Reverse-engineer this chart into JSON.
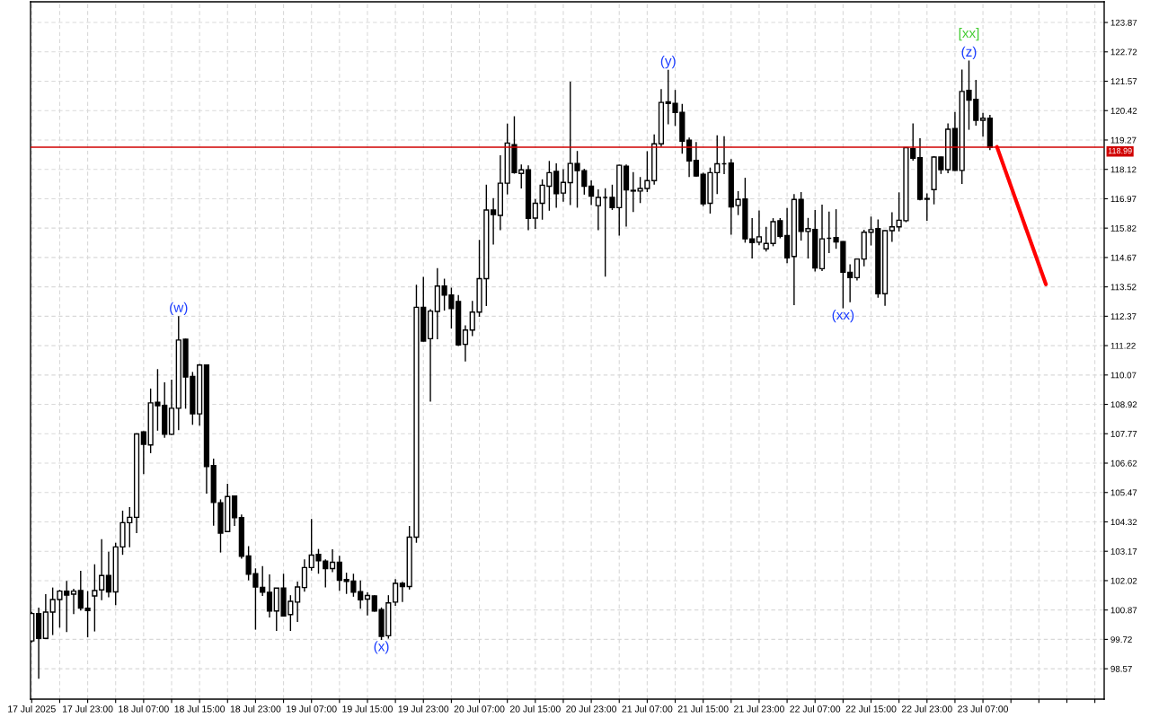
{
  "chart_data": {
    "type": "candlestick",
    "x": [
      "2025-07-17T15:00",
      "2025-07-17T16:00",
      "2025-07-17T17:00",
      "2025-07-17T18:00",
      "2025-07-17T19:00",
      "2025-07-17T20:00",
      "2025-07-17T21:00",
      "2025-07-17T22:00",
      "2025-07-17T23:00",
      "2025-07-18T00:00",
      "2025-07-18T01:00",
      "2025-07-18T02:00",
      "2025-07-18T03:00",
      "2025-07-18T04:00",
      "2025-07-18T05:00",
      "2025-07-18T06:00",
      "2025-07-18T07:00",
      "2025-07-18T08:00",
      "2025-07-18T09:00",
      "2025-07-18T10:00",
      "2025-07-18T11:00",
      "2025-07-18T12:00",
      "2025-07-18T13:00",
      "2025-07-18T14:00",
      "2025-07-18T15:00",
      "2025-07-18T16:00",
      "2025-07-18T17:00",
      "2025-07-18T18:00",
      "2025-07-18T19:00",
      "2025-07-18T20:00",
      "2025-07-18T21:00",
      "2025-07-18T22:00",
      "2025-07-18T23:00",
      "2025-07-19T00:00",
      "2025-07-19T01:00",
      "2025-07-19T02:00",
      "2025-07-19T03:00",
      "2025-07-19T04:00",
      "2025-07-19T05:00",
      "2025-07-19T06:00",
      "2025-07-19T07:00",
      "2025-07-19T08:00",
      "2025-07-19T09:00",
      "2025-07-19T10:00",
      "2025-07-19T11:00",
      "2025-07-19T12:00",
      "2025-07-19T13:00",
      "2025-07-19T14:00",
      "2025-07-19T15:00",
      "2025-07-19T16:00",
      "2025-07-19T17:00",
      "2025-07-19T18:00",
      "2025-07-19T19:00",
      "2025-07-19T20:00",
      "2025-07-19T21:00",
      "2025-07-19T22:00",
      "2025-07-19T23:00",
      "2025-07-20T00:00",
      "2025-07-20T01:00",
      "2025-07-20T02:00",
      "2025-07-20T03:00",
      "2025-07-20T04:00",
      "2025-07-20T05:00",
      "2025-07-20T06:00",
      "2025-07-20T07:00",
      "2025-07-20T08:00",
      "2025-07-20T09:00",
      "2025-07-20T10:00",
      "2025-07-20T11:00",
      "2025-07-20T12:00",
      "2025-07-20T13:00",
      "2025-07-20T14:00",
      "2025-07-20T15:00",
      "2025-07-20T16:00",
      "2025-07-20T17:00",
      "2025-07-20T18:00",
      "2025-07-20T19:00",
      "2025-07-20T20:00",
      "2025-07-20T21:00",
      "2025-07-20T22:00",
      "2025-07-20T23:00",
      "2025-07-21T00:00",
      "2025-07-21T01:00",
      "2025-07-21T02:00",
      "2025-07-21T03:00",
      "2025-07-21T04:00",
      "2025-07-21T05:00",
      "2025-07-21T06:00",
      "2025-07-21T07:00",
      "2025-07-21T08:00",
      "2025-07-21T09:00",
      "2025-07-21T10:00",
      "2025-07-21T11:00",
      "2025-07-21T12:00",
      "2025-07-21T13:00",
      "2025-07-21T14:00",
      "2025-07-21T15:00",
      "2025-07-21T16:00",
      "2025-07-21T17:00",
      "2025-07-21T18:00",
      "2025-07-21T19:00",
      "2025-07-21T20:00",
      "2025-07-21T21:00",
      "2025-07-21T22:00",
      "2025-07-21T23:00",
      "2025-07-22T00:00",
      "2025-07-22T01:00",
      "2025-07-22T02:00",
      "2025-07-22T03:00",
      "2025-07-22T04:00",
      "2025-07-22T05:00",
      "2025-07-22T06:00",
      "2025-07-22T07:00",
      "2025-07-22T08:00",
      "2025-07-22T09:00",
      "2025-07-22T10:00",
      "2025-07-22T11:00",
      "2025-07-22T12:00",
      "2025-07-22T13:00",
      "2025-07-22T14:00",
      "2025-07-22T15:00",
      "2025-07-22T16:00",
      "2025-07-22T17:00",
      "2025-07-22T18:00",
      "2025-07-22T19:00",
      "2025-07-22T20:00",
      "2025-07-22T21:00",
      "2025-07-22T22:00",
      "2025-07-22T23:00",
      "2025-07-23T00:00",
      "2025-07-23T01:00",
      "2025-07-23T02:00",
      "2025-07-23T03:00",
      "2025-07-23T04:00",
      "2025-07-23T05:00",
      "2025-07-23T06:00",
      "2025-07-23T07:00",
      "2025-07-23T08:00"
    ],
    "ohlc": [
      [
        99.66,
        100.8,
        99.6,
        100.73
      ],
      [
        100.73,
        100.96,
        98.18,
        99.76
      ],
      [
        99.76,
        101.49,
        99.74,
        100.79
      ],
      [
        100.79,
        101.75,
        99.89,
        101.28
      ],
      [
        101.28,
        101.66,
        100.18,
        101.61
      ],
      [
        101.61,
        102.01,
        100.01,
        101.45
      ],
      [
        101.49,
        101.7,
        100.71,
        101.61
      ],
      [
        101.63,
        102.4,
        100.85,
        100.94
      ],
      [
        100.94,
        101.61,
        99.8,
        100.85
      ],
      [
        101.42,
        102.66,
        100.03,
        101.63
      ],
      [
        101.66,
        103.64,
        101.25,
        102.22
      ],
      [
        102.22,
        103.15,
        101.37,
        101.58
      ],
      [
        101.58,
        103.5,
        101.06,
        103.34
      ],
      [
        103.34,
        104.76,
        103.03,
        104.29
      ],
      [
        104.29,
        104.9,
        103.33,
        104.5
      ],
      [
        104.5,
        107.79,
        103.88,
        107.76
      ],
      [
        107.84,
        107.87,
        106.19,
        107.36
      ],
      [
        107.33,
        109.54,
        107.01,
        108.98
      ],
      [
        109.0,
        110.3,
        107.89,
        108.87
      ],
      [
        108.88,
        109.78,
        107.61,
        107.75
      ],
      [
        107.75,
        109.89,
        107.72,
        108.77
      ],
      [
        108.77,
        112.37,
        107.91,
        111.44
      ],
      [
        111.47,
        111.49,
        108.75,
        109.99
      ],
      [
        110.01,
        110.19,
        108.12,
        108.55
      ],
      [
        108.55,
        110.5,
        108.09,
        110.46
      ],
      [
        110.46,
        110.48,
        105.43,
        106.49
      ],
      [
        106.53,
        106.8,
        104.17,
        105.08
      ],
      [
        105.07,
        105.2,
        103.12,
        103.88
      ],
      [
        103.94,
        105.81,
        103.92,
        105.31
      ],
      [
        105.33,
        105.36,
        104.16,
        104.48
      ],
      [
        104.49,
        104.61,
        102.88,
        102.97
      ],
      [
        102.99,
        103.37,
        102.03,
        102.27
      ],
      [
        102.29,
        102.5,
        100.1,
        101.77
      ],
      [
        101.76,
        102.59,
        101.42,
        101.57
      ],
      [
        101.56,
        102.26,
        100.58,
        100.83
      ],
      [
        100.83,
        101.74,
        100.05,
        101.73
      ],
      [
        101.73,
        102.29,
        100.61,
        100.64
      ],
      [
        100.69,
        101.45,
        100.05,
        101.21
      ],
      [
        101.18,
        101.98,
        100.4,
        101.77
      ],
      [
        101.75,
        102.85,
        101.59,
        102.53
      ],
      [
        102.53,
        104.43,
        102.41,
        103.02
      ],
      [
        103.05,
        103.26,
        102.29,
        102.8
      ],
      [
        102.78,
        102.85,
        101.75,
        102.49
      ],
      [
        102.49,
        103.25,
        102.35,
        102.74
      ],
      [
        102.74,
        102.99,
        101.62,
        102.03
      ],
      [
        102.06,
        102.33,
        101.5,
        101.99
      ],
      [
        102.0,
        102.29,
        101.39,
        101.57
      ],
      [
        101.59,
        102.03,
        100.92,
        101.27
      ],
      [
        101.3,
        101.56,
        100.66,
        101.44
      ],
      [
        101.42,
        101.45,
        100.81,
        100.83
      ],
      [
        100.89,
        100.97,
        99.7,
        99.84
      ],
      [
        99.86,
        101.45,
        99.75,
        101.15
      ],
      [
        101.18,
        102.08,
        101.03,
        101.91
      ],
      [
        101.91,
        101.97,
        101.18,
        101.79
      ],
      [
        101.79,
        104.16,
        101.67,
        103.72
      ],
      [
        103.72,
        113.6,
        103.5,
        112.72
      ],
      [
        112.72,
        113.91,
        111.38,
        111.4
      ],
      [
        111.49,
        112.65,
        109.03,
        112.57
      ],
      [
        112.56,
        114.25,
        111.47,
        113.55
      ],
      [
        113.55,
        113.84,
        112.59,
        113.2
      ],
      [
        113.2,
        113.49,
        111.89,
        112.67
      ],
      [
        112.95,
        113.2,
        111.21,
        111.25
      ],
      [
        111.27,
        112.01,
        110.6,
        111.83
      ],
      [
        111.83,
        112.97,
        111.59,
        112.53
      ],
      [
        112.53,
        115.36,
        112.35,
        113.84
      ],
      [
        113.84,
        117.52,
        112.77,
        116.53
      ],
      [
        116.53,
        116.99,
        115.18,
        116.35
      ],
      [
        116.32,
        118.67,
        115.74,
        117.58
      ],
      [
        117.58,
        119.91,
        117.14,
        119.15
      ],
      [
        119.09,
        120.2,
        117.95,
        117.99
      ],
      [
        117.96,
        118.31,
        117.37,
        118.1
      ],
      [
        118.1,
        118.28,
        115.74,
        116.2
      ],
      [
        116.21,
        116.96,
        115.79,
        116.79
      ],
      [
        116.79,
        117.73,
        116.15,
        117.5
      ],
      [
        117.46,
        118.45,
        116.5,
        117.99
      ],
      [
        118.04,
        118.36,
        116.62,
        117.17
      ],
      [
        117.19,
        118.13,
        116.85,
        117.61
      ],
      [
        117.6,
        121.55,
        116.72,
        118.35
      ],
      [
        118.35,
        118.84,
        116.62,
        118.07
      ],
      [
        118.07,
        118.14,
        117.13,
        117.46
      ],
      [
        117.46,
        117.69,
        116.72,
        117.07
      ],
      [
        116.7,
        117.34,
        115.74,
        117.02
      ],
      [
        117.02,
        117.38,
        113.92,
        117.02
      ],
      [
        117.02,
        117.52,
        116.53,
        116.62
      ],
      [
        116.62,
        118.3,
        115.53,
        118.28
      ],
      [
        118.24,
        118.31,
        115.88,
        117.32
      ],
      [
        117.3,
        118.01,
        116.45,
        117.27
      ],
      [
        117.27,
        117.82,
        116.8,
        117.37
      ],
      [
        117.37,
        118.83,
        117.23,
        117.68
      ],
      [
        117.68,
        119.49,
        117.52,
        119.12
      ],
      [
        119.12,
        121.26,
        119.01,
        120.74
      ],
      [
        120.76,
        122.02,
        119.88,
        120.7
      ],
      [
        120.7,
        121.23,
        119.82,
        120.35
      ],
      [
        120.35,
        120.68,
        118.73,
        119.22
      ],
      [
        119.26,
        119.37,
        117.82,
        118.45
      ],
      [
        118.47,
        119.19,
        117.84,
        117.86
      ],
      [
        117.93,
        117.99,
        116.68,
        116.77
      ],
      [
        116.79,
        118.19,
        116.39,
        117.99
      ],
      [
        117.99,
        119.45,
        117.15,
        118.34
      ],
      [
        118.34,
        119.42,
        117.93,
        118.34
      ],
      [
        118.37,
        118.52,
        115.56,
        116.65
      ],
      [
        116.71,
        117.27,
        116.33,
        116.94
      ],
      [
        116.96,
        117.79,
        115.25,
        115.4
      ],
      [
        115.4,
        116.21,
        114.63,
        115.25
      ],
      [
        115.27,
        116.51,
        115.15,
        115.48
      ],
      [
        115.01,
        115.87,
        114.9,
        115.22
      ],
      [
        115.22,
        116.21,
        115.11,
        116.07
      ],
      [
        116.11,
        116.21,
        115.42,
        115.5
      ],
      [
        115.53,
        116.61,
        114.45,
        114.66
      ],
      [
        114.71,
        117.15,
        112.8,
        116.94
      ],
      [
        116.94,
        117.23,
        115.33,
        115.69
      ],
      [
        115.69,
        116.22,
        114.63,
        115.8
      ],
      [
        115.77,
        116.53,
        114.12,
        114.26
      ],
      [
        114.23,
        116.74,
        114.14,
        115.4
      ],
      [
        115.42,
        116.47,
        114.84,
        115.42
      ],
      [
        115.45,
        116.56,
        115.01,
        115.28
      ],
      [
        115.29,
        115.31,
        112.68,
        114.09
      ],
      [
        114.09,
        114.4,
        112.92,
        113.88
      ],
      [
        113.88,
        114.63,
        113.77,
        114.61
      ],
      [
        114.61,
        115.76,
        114.32,
        115.66
      ],
      [
        115.66,
        116.27,
        115.14,
        115.76
      ],
      [
        115.8,
        116.16,
        113.09,
        113.25
      ],
      [
        113.25,
        115.74,
        112.78,
        115.72
      ],
      [
        115.72,
        116.44,
        115.28,
        115.87
      ],
      [
        115.87,
        117.22,
        115.69,
        116.13
      ],
      [
        116.11,
        118.99,
        116.05,
        118.97
      ],
      [
        118.93,
        119.92,
        118.46,
        118.56
      ],
      [
        118.58,
        119.34,
        116.91,
        116.95
      ],
      [
        116.98,
        117.18,
        116.11,
        116.95
      ],
      [
        117.33,
        118.64,
        116.75,
        118.6
      ],
      [
        118.6,
        118.62,
        117.94,
        118.11
      ],
      [
        118.11,
        119.92,
        117.97,
        119.69
      ],
      [
        119.72,
        120.37,
        118.06,
        118.08
      ],
      [
        118.08,
        122.03,
        117.55,
        121.17
      ],
      [
        121.21,
        122.38,
        119.67,
        120.83
      ],
      [
        120.86,
        121.62,
        119.83,
        120.04
      ],
      [
        120.04,
        120.33,
        119.4,
        120.12
      ],
      [
        120.12,
        120.25,
        118.87,
        118.99
      ]
    ],
    "series": [
      {
        "type": "line",
        "color": "#ff0000",
        "x": [
          "2025-07-23T09:00",
          "2025-07-23T16:00"
        ],
        "values": [
          119.0,
          113.62
        ]
      }
    ],
    "xlim": [
      "2025-07-17T14:50",
      "2025-07-24T00:20"
    ],
    "ylim": [
      97.38,
      124.68
    ],
    "xticks": [
      {
        "value": "2025-07-17T15:00",
        "label": "17 Jul 2025"
      },
      {
        "value": "2025-07-17T19:00",
        "label": null
      },
      {
        "value": "2025-07-17T23:00",
        "label": "17 Jul 23:00"
      },
      {
        "value": "2025-07-18T03:00",
        "label": null
      },
      {
        "value": "2025-07-18T07:00",
        "label": "18 Jul 07:00"
      },
      {
        "value": "2025-07-18T11:00",
        "label": null
      },
      {
        "value": "2025-07-18T15:00",
        "label": "18 Jul 15:00"
      },
      {
        "value": "2025-07-18T19:00",
        "label": null
      },
      {
        "value": "2025-07-18T23:00",
        "label": "18 Jul 23:00"
      },
      {
        "value": "2025-07-19T03:00",
        "label": null
      },
      {
        "value": "2025-07-19T07:00",
        "label": "19 Jul 07:00"
      },
      {
        "value": "2025-07-19T11:00",
        "label": null
      },
      {
        "value": "2025-07-19T15:00",
        "label": "19 Jul 15:00"
      },
      {
        "value": "2025-07-19T19:00",
        "label": null
      },
      {
        "value": "2025-07-19T23:00",
        "label": "19 Jul 23:00"
      },
      {
        "value": "2025-07-20T03:00",
        "label": null
      },
      {
        "value": "2025-07-20T07:00",
        "label": "20 Jul 07:00"
      },
      {
        "value": "2025-07-20T11:00",
        "label": null
      },
      {
        "value": "2025-07-20T15:00",
        "label": "20 Jul 15:00"
      },
      {
        "value": "2025-07-20T19:00",
        "label": null
      },
      {
        "value": "2025-07-20T23:00",
        "label": "20 Jul 23:00"
      },
      {
        "value": "2025-07-21T03:00",
        "label": null
      },
      {
        "value": "2025-07-21T07:00",
        "label": "21 Jul 07:00"
      },
      {
        "value": "2025-07-21T11:00",
        "label": null
      },
      {
        "value": "2025-07-21T15:00",
        "label": "21 Jul 15:00"
      },
      {
        "value": "2025-07-21T19:00",
        "label": null
      },
      {
        "value": "2025-07-21T23:00",
        "label": "21 Jul 23:00"
      },
      {
        "value": "2025-07-22T03:00",
        "label": null
      },
      {
        "value": "2025-07-22T07:00",
        "label": "22 Jul 07:00"
      },
      {
        "value": "2025-07-22T11:00",
        "label": null
      },
      {
        "value": "2025-07-22T15:00",
        "label": "22 Jul 15:00"
      },
      {
        "value": "2025-07-22T19:00",
        "label": null
      },
      {
        "value": "2025-07-22T23:00",
        "label": "22 Jul 23:00"
      },
      {
        "value": "2025-07-23T03:00",
        "label": null
      },
      {
        "value": "2025-07-23T07:00",
        "label": "23 Jul 07:00"
      },
      {
        "value": "2025-07-23T11:00",
        "label": null
      },
      {
        "value": "2025-07-23T15:00",
        "label": null
      },
      {
        "value": "2025-07-23T19:00",
        "label": null
      },
      {
        "value": "2025-07-23T23:00",
        "label": null
      }
    ],
    "yticks": [
      98.57,
      99.72,
      100.87,
      102.02,
      103.17,
      104.32,
      105.47,
      106.62,
      107.77,
      108.92,
      110.07,
      111.22,
      112.37,
      113.52,
      114.67,
      115.82,
      116.97,
      118.12,
      119.27,
      120.42,
      121.57,
      122.72,
      123.87
    ],
    "grid": true,
    "ref_lines": [
      {
        "axis": "y",
        "value": 118.99,
        "label": "118.99",
        "color": "#d00000"
      }
    ],
    "annotations": [
      {
        "text": "(w)",
        "x": "2025-07-18T12:00",
        "y": 112.37
      },
      {
        "text": "(x)",
        "x": "2025-07-19T17:00",
        "y": 99.7
      },
      {
        "text": "(y)",
        "x": "2025-07-21T10:00",
        "y": 122.02
      },
      {
        "text": "(xx)",
        "x": "2025-07-22T11:00",
        "y": 112.68
      },
      {
        "text": "(z)",
        "x": "2025-07-23T05:00",
        "y": 122.38
      },
      {
        "text": "[xx]",
        "x": "2025-07-23T05:00",
        "y": 122.38
      }
    ]
  }
}
